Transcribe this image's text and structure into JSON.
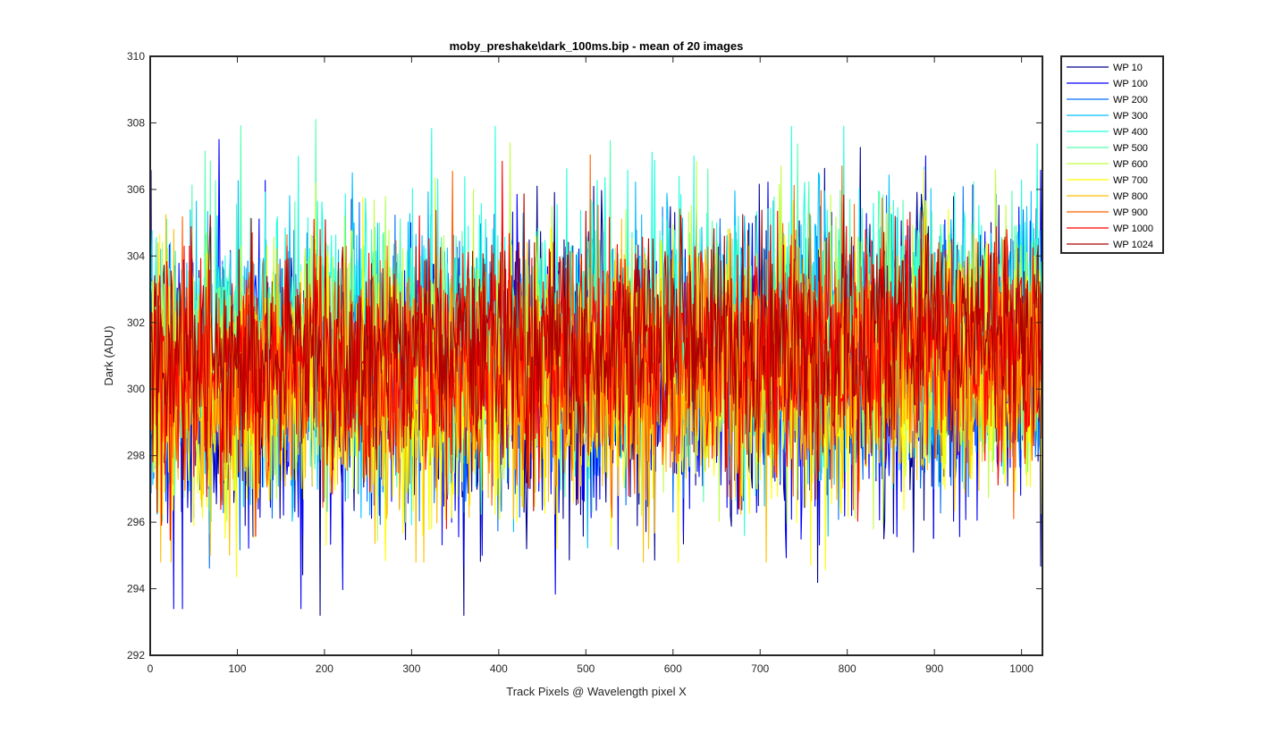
{
  "chart_data": {
    "type": "line",
    "title": "moby_preshake\\dark_100ms.bip - mean of 20 images",
    "xlabel": "Track Pixels @ Wavelength pixel X",
    "ylabel": "Dark (ADU)",
    "xlim": [
      0,
      1024
    ],
    "ylim": [
      292,
      310
    ],
    "xticks": [
      0,
      100,
      200,
      300,
      400,
      500,
      600,
      700,
      800,
      900,
      1000
    ],
    "yticks": [
      292,
      294,
      296,
      298,
      300,
      302,
      304,
      306,
      308,
      310
    ],
    "grid": false,
    "legend_position": "outside-top-right",
    "num_points": 1024,
    "series": [
      {
        "name": "WP 10",
        "color": "#00008F",
        "mean": 300.6,
        "amplitude": 2.3,
        "min": 293.2,
        "max": 308.4
      },
      {
        "name": "WP 100",
        "color": "#0000FF",
        "mean": 300.3,
        "amplitude": 2.2,
        "min": 293.4,
        "max": 307.5
      },
      {
        "name": "WP 200",
        "color": "#0070FF",
        "mean": 300.6,
        "amplitude": 2.0,
        "min": 294.0,
        "max": 306.8
      },
      {
        "name": "WP 300",
        "color": "#00BFFF",
        "mean": 301.4,
        "amplitude": 2.0,
        "min": 292.9,
        "max": 306.5
      },
      {
        "name": "WP 400",
        "color": "#20FFDF",
        "mean": 301.9,
        "amplitude": 1.9,
        "min": 295.0,
        "max": 307.9
      },
      {
        "name": "WP 500",
        "color": "#50FFAF",
        "mean": 301.5,
        "amplitude": 1.9,
        "min": 295.0,
        "max": 308.1
      },
      {
        "name": "WP 600",
        "color": "#BFFF40",
        "mean": 300.8,
        "amplitude": 1.9,
        "min": 293.8,
        "max": 307.4
      },
      {
        "name": "WP 700",
        "color": "#FFFF00",
        "mean": 299.9,
        "amplitude": 1.9,
        "min": 293.0,
        "max": 306.6
      },
      {
        "name": "WP 800",
        "color": "#FFBF00",
        "mean": 300.3,
        "amplitude": 1.8,
        "min": 294.8,
        "max": 308.3
      },
      {
        "name": "WP 900",
        "color": "#FF6000",
        "mean": 300.7,
        "amplitude": 1.8,
        "min": 294.0,
        "max": 308.0
      },
      {
        "name": "WP 1000",
        "color": "#FF0000",
        "mean": 301.0,
        "amplitude": 1.7,
        "min": 295.0,
        "max": 307.8
      },
      {
        "name": "WP 1024",
        "color": "#AF0000",
        "mean": 301.4,
        "amplitude": 1.6,
        "min": 296.0,
        "max": 306.6
      }
    ]
  }
}
